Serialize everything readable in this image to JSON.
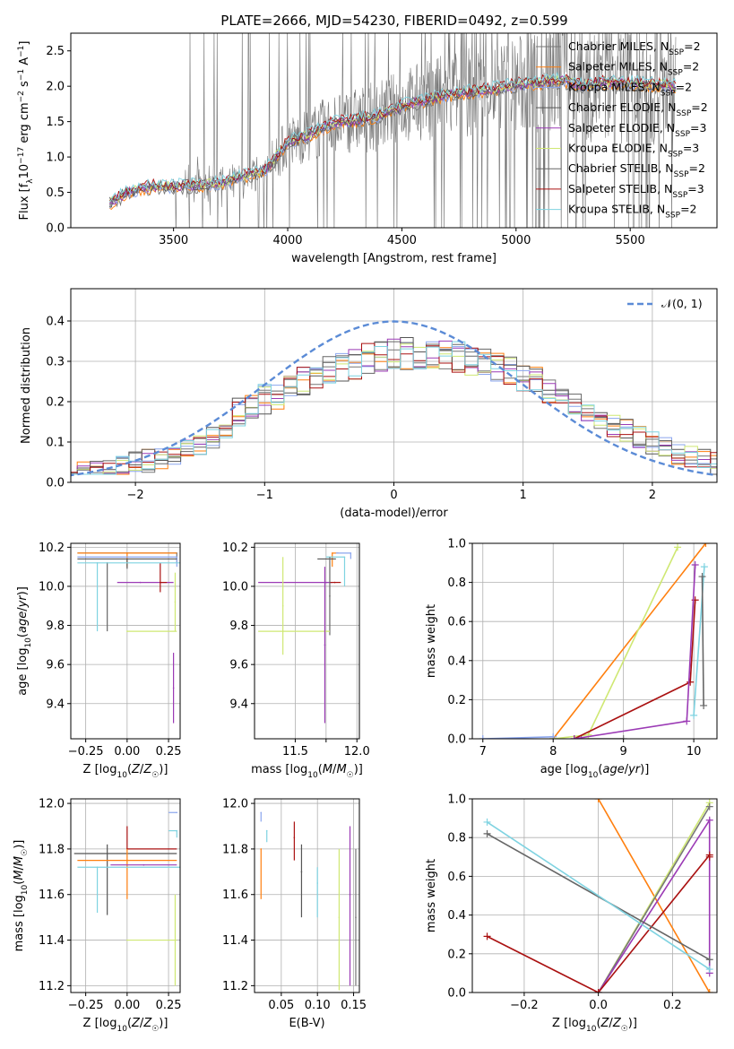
{
  "figure": {
    "title": "PLATE=2666, MJD=54230, FIBERID=0492, z=0.599"
  },
  "model_colors": [
    "#777777",
    "#ff7f0e",
    "#8aa5ee",
    "#555555",
    "#9b3ab5",
    "#cfe873",
    "#666666",
    "#aa1111",
    "#7fd3e1"
  ],
  "chart_data": [
    {
      "id": "spectrum",
      "type": "line",
      "xlabel": "wavelength [Angstrom, rest frame]",
      "ylabel": "Flux [f_λ 10^-17 erg cm^-2 s^-1 A^-1]",
      "xlim": [
        3050,
        5880
      ],
      "ylim": [
        0,
        2.75
      ],
      "xticks": [
        3500,
        4000,
        4500,
        5000,
        5500
      ],
      "yticks": [
        0.0,
        0.5,
        1.0,
        1.5,
        2.0,
        2.5
      ],
      "grid": false,
      "legend_position": "upper right",
      "data_color": "#777777",
      "continuum": {
        "x": [
          3220,
          3300,
          3400,
          3500,
          3600,
          3700,
          3800,
          3900,
          4000,
          4100,
          4200,
          4300,
          4400,
          4500,
          4600,
          4700,
          4800,
          4900,
          5000,
          5100,
          5200,
          5300,
          5400,
          5500,
          5600,
          5700
        ],
        "y": [
          0.35,
          0.5,
          0.58,
          0.58,
          0.6,
          0.62,
          0.72,
          0.8,
          1.2,
          1.32,
          1.48,
          1.52,
          1.58,
          1.72,
          1.8,
          1.88,
          1.92,
          1.96,
          2.02,
          2.05,
          2.08,
          2.0,
          2.06,
          2.04,
          2.02,
          2.0
        ]
      },
      "legend": [
        {
          "label": "Chabrier MILES, N",
          "sub": "SSP",
          "tail": "=2",
          "color": "#777777"
        },
        {
          "label": "Salpeter MILES, N",
          "sub": "SSP",
          "tail": "=2",
          "color": "#ff7f0e"
        },
        {
          "label": "Kroupa MILES, N",
          "sub": "SSP",
          "tail": "=2",
          "color": "#8aa5ee"
        },
        {
          "label": "Chabrier ELODIE, N",
          "sub": "SSP",
          "tail": "=2",
          "color": "#555555"
        },
        {
          "label": "Salpeter ELODIE, N",
          "sub": "SSP",
          "tail": "=3",
          "color": "#9b3ab5"
        },
        {
          "label": "Kroupa ELODIE, N",
          "sub": "SSP",
          "tail": "=3",
          "color": "#cfe873"
        },
        {
          "label": "Chabrier STELIB, N",
          "sub": "SSP",
          "tail": "=2",
          "color": "#666666"
        },
        {
          "label": "Salpeter STELIB, N",
          "sub": "SSP",
          "tail": "=3",
          "color": "#aa1111"
        },
        {
          "label": "Kroupa STELIB, N",
          "sub": "SSP",
          "tail": "=2",
          "color": "#7fd3e1"
        }
      ]
    },
    {
      "id": "residuals",
      "type": "histogram",
      "xlabel": "(data-model)/error",
      "ylabel": "Normed distribution",
      "xlim": [
        -2.5,
        2.5
      ],
      "ylim": [
        0,
        0.48
      ],
      "xticks": [
        -2,
        -1,
        0,
        1,
        2
      ],
      "yticks": [
        0.0,
        0.1,
        0.2,
        0.3,
        0.4
      ],
      "grid": true,
      "legend_position": "upper right",
      "gaussian": {
        "label": "𝒩(0, 1)",
        "mean": 0,
        "sigma": 1,
        "color": "#5b8bd6"
      },
      "bin_width": 0.1
    },
    {
      "id": "age_vs_Z",
      "type": "errorbar",
      "xlabel": "Z [log10(Z/Z☉)]",
      "ylabel": "age [log10(age/yr)]",
      "xlim": [
        -0.34,
        0.32
      ],
      "ylim": [
        9.22,
        10.22
      ],
      "xticks": [
        -0.25,
        0.0,
        0.25
      ],
      "yticks": [
        9.4,
        9.6,
        9.8,
        10.0,
        10.2
      ],
      "grid": true,
      "points": [
        {
          "model": 0,
          "x": 0.3,
          "y": 10.17,
          "xerr": [
            0.6,
            0.0
          ],
          "yerr": [
            0.05,
            0.0
          ]
        },
        {
          "model": 1,
          "x": 0.0,
          "y": 10.17,
          "xerr": [
            0.3,
            0.3
          ],
          "yerr": [
            0.07,
            0.0
          ]
        },
        {
          "model": 2,
          "x": 0.3,
          "y": 10.15,
          "xerr": [
            0.6,
            0.0
          ],
          "yerr": [
            0.05,
            0.0
          ]
        },
        {
          "model": 3,
          "x": 0.0,
          "y": 10.14,
          "xerr": [
            0.3,
            0.3
          ],
          "yerr": [
            0.05,
            0.0
          ]
        },
        {
          "model": 4,
          "x": 0.08,
          "y": 10.02,
          "xerr": [
            0.14,
            0.2
          ],
          "yerr": [
            0.0,
            0.0
          ]
        },
        {
          "model": 5,
          "x": 0.0,
          "y": 9.77,
          "xerr": [
            0.0,
            0.3
          ],
          "yerr": [
            0.0,
            0.0
          ]
        },
        {
          "model": 6,
          "x": -0.12,
          "y": 10.12,
          "xerr": [
            0.0,
            0.0
          ],
          "yerr": [
            0.35,
            0.0
          ]
        },
        {
          "model": 7,
          "x": 0.2,
          "y": 10.02,
          "xerr": [
            0.0,
            0.04
          ],
          "yerr": [
            0.05,
            0.1
          ]
        },
        {
          "model": 8,
          "x": -0.18,
          "y": 10.12,
          "xerr": [
            0.12,
            0.5
          ],
          "yerr": [
            0.35,
            0.0
          ]
        },
        {
          "model": 4,
          "x": 0.28,
          "y": 9.48,
          "xerr": [
            0.0,
            0.0
          ],
          "yerr": [
            0.18,
            0.18
          ]
        },
        {
          "model": 5,
          "x": 0.29,
          "y": 9.92,
          "xerr": [
            0.0,
            0.0
          ],
          "yerr": [
            0.15,
            0.15
          ]
        }
      ]
    },
    {
      "id": "age_vs_mass",
      "type": "errorbar",
      "xlabel": "mass [log10(M/M☉)]",
      "ylabel": "",
      "xlim": [
        11.17,
        12.02
      ],
      "ylim": [
        9.22,
        10.22
      ],
      "xticks": [
        11.5,
        11.75,
        12.0
      ],
      "xticklabels": [
        "11.5",
        "",
        "12.0"
      ],
      "yticks": [
        9.4,
        9.6,
        9.8,
        10.0,
        10.2
      ],
      "grid": true,
      "points": [
        {
          "model": 1,
          "x": 11.8,
          "y": 10.17,
          "xerr": [
            0.0,
            0.05
          ],
          "yerr": [
            0.07,
            0.0
          ]
        },
        {
          "model": 2,
          "x": 11.95,
          "y": 10.17,
          "xerr": [
            0.12,
            0.0
          ],
          "yerr": [
            0.03,
            0.0
          ]
        },
        {
          "model": 8,
          "x": 11.9,
          "y": 10.15,
          "xerr": [
            0.15,
            0.0
          ],
          "yerr": [
            0.15,
            0.0
          ]
        },
        {
          "model": 3,
          "x": 11.78,
          "y": 10.14,
          "xerr": [
            0.1,
            0.05
          ],
          "yerr": [
            0.0,
            0.0
          ]
        },
        {
          "model": 4,
          "x": 11.75,
          "y": 10.02,
          "xerr": [
            0.55,
            0.05
          ],
          "yerr": [
            0.0,
            0.0
          ]
        },
        {
          "model": 7,
          "x": 11.82,
          "y": 10.02,
          "xerr": [
            0.04,
            0.05
          ],
          "yerr": [
            0.0,
            0.0
          ]
        },
        {
          "model": 6,
          "x": 11.78,
          "y": 9.95,
          "xerr": [
            0.0,
            0.0
          ],
          "yerr": [
            0.2,
            0.2
          ]
        },
        {
          "model": 5,
          "x": 11.4,
          "y": 9.77,
          "xerr": [
            0.2,
            0.38
          ],
          "yerr": [
            0.0,
            0.0
          ]
        },
        {
          "model": 5,
          "x": 11.4,
          "y": 9.9,
          "xerr": [
            0.0,
            0.0
          ],
          "yerr": [
            0.25,
            0.25
          ]
        },
        {
          "model": 4,
          "x": 11.74,
          "y": 9.7,
          "xerr": [
            0.0,
            0.0
          ],
          "yerr": [
            0.4,
            0.4
          ]
        }
      ]
    },
    {
      "id": "mass_weight_vs_age",
      "type": "line",
      "xlabel": "age [log10(age/yr)]",
      "ylabel": "mass weight",
      "xlim": [
        6.85,
        10.33
      ],
      "ylim": [
        0,
        1.0
      ],
      "xticks": [
        7,
        8,
        9,
        10
      ],
      "yticks": [
        0.0,
        0.2,
        0.4,
        0.6,
        0.8,
        1.0
      ],
      "grid": true,
      "series": [
        {
          "model": 1,
          "x": [
            8.0,
            10.17
          ],
          "y": [
            0.0,
            1.0
          ]
        },
        {
          "model": 5,
          "x": [
            8.0,
            8.5,
            9.77
          ],
          "y": [
            0.0,
            0.02,
            0.98
          ]
        },
        {
          "model": 0,
          "x": [
            8.4,
            9.0
          ],
          "y": [
            0.0,
            0.0
          ]
        },
        {
          "model": 2,
          "x": [
            7.0,
            8.0
          ],
          "y": [
            0.0,
            0.01
          ]
        },
        {
          "model": 7,
          "x": [
            8.3,
            9.95,
            10.02
          ],
          "y": [
            0.0,
            0.29,
            0.71
          ]
        },
        {
          "model": 4,
          "x": [
            8.3,
            9.9,
            10.02
          ],
          "y": [
            0.0,
            0.09,
            0.89
          ]
        },
        {
          "model": 8,
          "x": [
            10.0,
            10.15
          ],
          "y": [
            0.12,
            0.88
          ]
        },
        {
          "model": 6,
          "x": [
            10.12,
            10.14
          ],
          "y": [
            0.83,
            0.17
          ]
        }
      ]
    },
    {
      "id": "mass_vs_Z",
      "type": "errorbar",
      "xlabel": "Z [log10(Z/Z☉)]",
      "ylabel": "mass [log10(M/M☉)]",
      "xlim": [
        -0.34,
        0.32
      ],
      "ylim": [
        11.17,
        12.02
      ],
      "xticks": [
        -0.25,
        0.0,
        0.25
      ],
      "yticks": [
        11.2,
        11.4,
        11.6,
        11.8,
        12.0
      ],
      "grid": true,
      "points": [
        {
          "model": 2,
          "x": 0.3,
          "y": 11.96,
          "xerr": [
            0.05,
            0.0
          ],
          "yerr": [
            0.0,
            0.0
          ]
        },
        {
          "model": 8,
          "x": 0.3,
          "y": 11.88,
          "xerr": [
            0.05,
            0.0
          ],
          "yerr": [
            0.03,
            0.0
          ]
        },
        {
          "model": 7,
          "x": 0.0,
          "y": 11.8,
          "xerr": [
            0.0,
            0.3
          ],
          "yerr": [
            0.0,
            0.1
          ]
        },
        {
          "model": 3,
          "x": -0.12,
          "y": 11.78,
          "xerr": [
            0.2,
            0.42
          ],
          "yerr": [
            0.27,
            0.04
          ]
        },
        {
          "model": 1,
          "x": 0.0,
          "y": 11.75,
          "xerr": [
            0.3,
            0.3
          ],
          "yerr": [
            0.17,
            0.05
          ]
        },
        {
          "model": 4,
          "x": 0.1,
          "y": 11.73,
          "xerr": [
            0.2,
            0.2
          ],
          "yerr": [
            0.0,
            0.0
          ]
        },
        {
          "model": 8,
          "x": -0.18,
          "y": 11.72,
          "xerr": [
            0.12,
            0.5
          ],
          "yerr": [
            0.2,
            0.0
          ]
        },
        {
          "model": 5,
          "x": 0.0,
          "y": 11.4,
          "xerr": [
            0.0,
            0.3
          ],
          "yerr": [
            0.0,
            0.0
          ]
        },
        {
          "model": 5,
          "x": 0.29,
          "y": 11.4,
          "xerr": [
            0.0,
            0.0
          ],
          "yerr": [
            0.2,
            0.2
          ]
        }
      ]
    },
    {
      "id": "mass_vs_EBV",
      "type": "errorbar",
      "xlabel": "E(B-V)",
      "ylabel": "",
      "xlim": [
        0.013,
        0.158
      ],
      "ylim": [
        11.17,
        12.02
      ],
      "xticks": [
        0.05,
        0.1,
        0.15
      ],
      "yticks": [
        11.2,
        11.4,
        11.6,
        11.8,
        12.0
      ],
      "grid": true,
      "points": [
        {
          "model": 2,
          "x": 0.022,
          "y": 11.96,
          "yerr": [
            0.04,
            0.0
          ]
        },
        {
          "model": 8,
          "x": 0.03,
          "y": 11.88,
          "yerr": [
            0.05,
            0.0
          ]
        },
        {
          "model": 1,
          "x": 0.022,
          "y": 11.8,
          "yerr": [
            0.22,
            0.0
          ]
        },
        {
          "model": 7,
          "x": 0.068,
          "y": 11.85,
          "yerr": [
            0.1,
            0.07
          ]
        },
        {
          "model": 3,
          "x": 0.078,
          "y": 11.7,
          "yerr": [
            0.2,
            0.12
          ]
        },
        {
          "model": 8,
          "x": 0.1,
          "y": 11.65,
          "yerr": [
            0.15,
            0.07
          ]
        },
        {
          "model": 4,
          "x": 0.145,
          "y": 11.6,
          "yerr": [
            0.4,
            0.3
          ]
        },
        {
          "model": 5,
          "x": 0.13,
          "y": 11.5,
          "yerr": [
            0.32,
            0.3
          ]
        },
        {
          "model": 0,
          "x": 0.153,
          "y": 11.5,
          "yerr": [
            0.3,
            0.3
          ]
        }
      ]
    },
    {
      "id": "mass_weight_vs_Z",
      "type": "line",
      "xlabel": "Z [log10(Z/Z☉)]",
      "ylabel": "mass weight",
      "xlim": [
        -0.34,
        0.32
      ],
      "ylim": [
        0,
        1.0
      ],
      "xticks": [
        -0.2,
        0.0,
        0.2
      ],
      "yticks": [
        0.0,
        0.2,
        0.4,
        0.6,
        0.8,
        1.0
      ],
      "grid": true,
      "series": [
        {
          "model": 1,
          "x": [
            0.0,
            0.3
          ],
          "y": [
            1.0,
            0.0
          ]
        },
        {
          "model": 5,
          "x": [
            0.0,
            0.3
          ],
          "y": [
            0.0,
            0.98
          ]
        },
        {
          "model": 0,
          "x": [
            0.0,
            0.3
          ],
          "y": [
            0.0,
            0.96
          ]
        },
        {
          "model": 4,
          "x": [
            0.0,
            0.3,
            0.3
          ],
          "y": [
            0.0,
            0.89,
            0.1
          ]
        },
        {
          "model": 7,
          "x": [
            -0.3,
            0.0,
            0.3,
            0.3
          ],
          "y": [
            0.29,
            0.0,
            0.71,
            0.7
          ]
        },
        {
          "model": 6,
          "x": [
            -0.3,
            0.3
          ],
          "y": [
            0.82,
            0.17
          ]
        },
        {
          "model": 8,
          "x": [
            -0.3,
            0.3
          ],
          "y": [
            0.88,
            0.12
          ]
        }
      ]
    }
  ]
}
